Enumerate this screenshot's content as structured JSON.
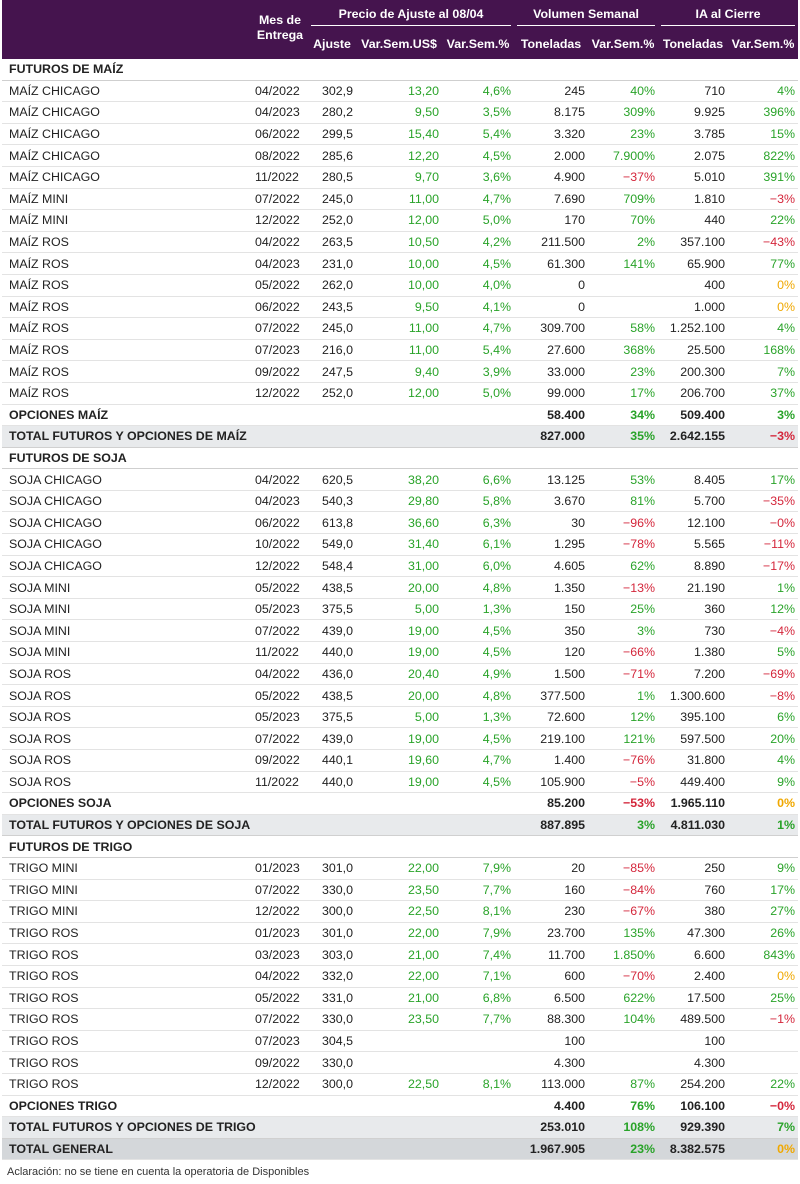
{
  "header": {
    "mes_entrega": [
      "Mes de",
      "Entrega"
    ],
    "precio_group": "Precio de Ajuste al 08/04",
    "volumen_group": "Volumen Semanal",
    "ia_group": "IA al Cierre",
    "col_ajuste": "Ajuste",
    "col_var_us": "Var.Sem.US$",
    "col_var_pct": "Var.Sem.%",
    "col_ton_vol": "Toneladas",
    "col_var_vol": "Var.Sem.%",
    "col_ton_ia": "Toneladas",
    "col_var_ia": "Var.Sem.%"
  },
  "colors": {
    "header_bg": "#45144e",
    "positive": "#29a329",
    "negative": "#d4263b",
    "zero": "#f0a800",
    "total_bg": "#e8eaec",
    "grand_bg": "#d4d7da"
  },
  "sections": [
    {
      "title": "FUTUROS DE MAÍZ",
      "rows": [
        [
          "MAÍZ CHICAGO",
          "04/2022",
          "302,9",
          "13,20",
          "4,6%",
          "245",
          "40%",
          "710",
          "4%"
        ],
        [
          "MAÍZ CHICAGO",
          "04/2023",
          "280,2",
          "9,50",
          "3,5%",
          "8.175",
          "309%",
          "9.925",
          "396%"
        ],
        [
          "MAÍZ CHICAGO",
          "06/2022",
          "299,5",
          "15,40",
          "5,4%",
          "3.320",
          "23%",
          "3.785",
          "15%"
        ],
        [
          "MAÍZ CHICAGO",
          "08/2022",
          "285,6",
          "12,20",
          "4,5%",
          "2.000",
          "7.900%",
          "2.075",
          "822%"
        ],
        [
          "MAÍZ CHICAGO",
          "11/2022",
          "280,5",
          "9,70",
          "3,6%",
          "4.900",
          "−37%",
          "5.010",
          "391%"
        ],
        [
          "MAÍZ MINI",
          "07/2022",
          "245,0",
          "11,00",
          "4,7%",
          "7.690",
          "709%",
          "1.810",
          "−3%"
        ],
        [
          "MAÍZ MINI",
          "12/2022",
          "252,0",
          "12,00",
          "5,0%",
          "170",
          "70%",
          "440",
          "22%"
        ],
        [
          "MAÍZ ROS",
          "04/2022",
          "263,5",
          "10,50",
          "4,2%",
          "211.500",
          "2%",
          "357.100",
          "−43%"
        ],
        [
          "MAÍZ ROS",
          "04/2023",
          "231,0",
          "10,00",
          "4,5%",
          "61.300",
          "141%",
          "65.900",
          "77%"
        ],
        [
          "MAÍZ ROS",
          "05/2022",
          "262,0",
          "10,00",
          "4,0%",
          "0",
          "",
          "400",
          "0%"
        ],
        [
          "MAÍZ ROS",
          "06/2022",
          "243,5",
          "9,50",
          "4,1%",
          "0",
          "",
          "1.000",
          "0%"
        ],
        [
          "MAÍZ ROS",
          "07/2022",
          "245,0",
          "11,00",
          "4,7%",
          "309.700",
          "58%",
          "1.252.100",
          "4%"
        ],
        [
          "MAÍZ ROS",
          "07/2023",
          "216,0",
          "11,00",
          "5,4%",
          "27.600",
          "368%",
          "25.500",
          "168%"
        ],
        [
          "MAÍZ ROS",
          "09/2022",
          "247,5",
          "9,40",
          "3,9%",
          "33.000",
          "23%",
          "200.300",
          "7%"
        ],
        [
          "MAÍZ ROS",
          "12/2022",
          "252,0",
          "12,00",
          "5,0%",
          "99.000",
          "17%",
          "206.700",
          "37%"
        ]
      ],
      "options": [
        "OPCIONES MAÍZ",
        "58.400",
        "34%",
        "509.400",
        "3%"
      ],
      "total": [
        "TOTAL FUTUROS Y OPCIONES DE MAÍZ",
        "827.000",
        "35%",
        "2.642.155",
        "−3%"
      ]
    },
    {
      "title": "FUTUROS DE SOJA",
      "rows": [
        [
          "SOJA CHICAGO",
          "04/2022",
          "620,5",
          "38,20",
          "6,6%",
          "13.125",
          "53%",
          "8.405",
          "17%"
        ],
        [
          "SOJA CHICAGO",
          "04/2023",
          "540,3",
          "29,80",
          "5,8%",
          "3.670",
          "81%",
          "5.700",
          "−35%"
        ],
        [
          "SOJA CHICAGO",
          "06/2022",
          "613,8",
          "36,60",
          "6,3%",
          "30",
          "−96%",
          "12.100",
          "−0%"
        ],
        [
          "SOJA CHICAGO",
          "10/2022",
          "549,0",
          "31,40",
          "6,1%",
          "1.295",
          "−78%",
          "5.565",
          "−11%"
        ],
        [
          "SOJA CHICAGO",
          "12/2022",
          "548,4",
          "31,00",
          "6,0%",
          "4.605",
          "62%",
          "8.890",
          "−17%"
        ],
        [
          "SOJA MINI",
          "05/2022",
          "438,5",
          "20,00",
          "4,8%",
          "1.350",
          "−13%",
          "21.190",
          "1%"
        ],
        [
          "SOJA MINI",
          "05/2023",
          "375,5",
          "5,00",
          "1,3%",
          "150",
          "25%",
          "360",
          "12%"
        ],
        [
          "SOJA MINI",
          "07/2022",
          "439,0",
          "19,00",
          "4,5%",
          "350",
          "3%",
          "730",
          "−4%"
        ],
        [
          "SOJA MINI",
          "11/2022",
          "440,0",
          "19,00",
          "4,5%",
          "120",
          "−66%",
          "1.380",
          "5%"
        ],
        [
          "SOJA ROS",
          "04/2022",
          "436,0",
          "20,40",
          "4,9%",
          "1.500",
          "−71%",
          "7.200",
          "−69%"
        ],
        [
          "SOJA ROS",
          "05/2022",
          "438,5",
          "20,00",
          "4,8%",
          "377.500",
          "1%",
          "1.300.600",
          "−8%"
        ],
        [
          "SOJA ROS",
          "05/2023",
          "375,5",
          "5,00",
          "1,3%",
          "72.600",
          "12%",
          "395.100",
          "6%"
        ],
        [
          "SOJA ROS",
          "07/2022",
          "439,0",
          "19,00",
          "4,5%",
          "219.100",
          "121%",
          "597.500",
          "20%"
        ],
        [
          "SOJA ROS",
          "09/2022",
          "440,1",
          "19,60",
          "4,7%",
          "1.400",
          "−76%",
          "31.800",
          "4%"
        ],
        [
          "SOJA ROS",
          "11/2022",
          "440,0",
          "19,00",
          "4,5%",
          "105.900",
          "−5%",
          "449.400",
          "9%"
        ]
      ],
      "options": [
        "OPCIONES SOJA",
        "85.200",
        "−53%",
        "1.965.110",
        "0%"
      ],
      "total": [
        "TOTAL FUTUROS Y OPCIONES DE SOJA",
        "887.895",
        "3%",
        "4.811.030",
        "1%"
      ]
    },
    {
      "title": "FUTUROS DE TRIGO",
      "rows": [
        [
          "TRIGO MINI",
          "01/2023",
          "301,0",
          "22,00",
          "7,9%",
          "20",
          "−85%",
          "250",
          "9%"
        ],
        [
          "TRIGO MINI",
          "07/2022",
          "330,0",
          "23,50",
          "7,7%",
          "160",
          "−84%",
          "760",
          "17%"
        ],
        [
          "TRIGO MINI",
          "12/2022",
          "300,0",
          "22,50",
          "8,1%",
          "230",
          "−67%",
          "380",
          "27%"
        ],
        [
          "TRIGO ROS",
          "01/2023",
          "301,0",
          "22,00",
          "7,9%",
          "23.700",
          "135%",
          "47.300",
          "26%"
        ],
        [
          "TRIGO ROS",
          "03/2023",
          "303,0",
          "21,00",
          "7,4%",
          "11.700",
          "1.850%",
          "6.600",
          "843%"
        ],
        [
          "TRIGO ROS",
          "04/2022",
          "332,0",
          "22,00",
          "7,1%",
          "600",
          "−70%",
          "2.400",
          "0%"
        ],
        [
          "TRIGO ROS",
          "05/2022",
          "331,0",
          "21,00",
          "6,8%",
          "6.500",
          "622%",
          "17.500",
          "25%"
        ],
        [
          "TRIGO ROS",
          "07/2022",
          "330,0",
          "23,50",
          "7,7%",
          "88.300",
          "104%",
          "489.500",
          "−1%"
        ],
        [
          "TRIGO ROS",
          "07/2023",
          "304,5",
          "",
          "",
          "100",
          "",
          "100",
          ""
        ],
        [
          "TRIGO ROS",
          "09/2022",
          "330,0",
          "",
          "",
          "4.300",
          "",
          "4.300",
          ""
        ],
        [
          "TRIGO ROS",
          "12/2022",
          "300,0",
          "22,50",
          "8,1%",
          "113.000",
          "87%",
          "254.200",
          "22%"
        ]
      ],
      "options": [
        "OPCIONES TRIGO",
        "4.400",
        "76%",
        "106.100",
        "−0%"
      ],
      "total": [
        "TOTAL FUTUROS Y OPCIONES DE TRIGO",
        "253.010",
        "108%",
        "929.390",
        "7%"
      ]
    }
  ],
  "grand_total": [
    "TOTAL GENERAL",
    "1.967.905",
    "23%",
    "8.382.575",
    "0%"
  ],
  "footnote": "Aclaración: no se tiene en cuenta la operatoria de Disponibles"
}
